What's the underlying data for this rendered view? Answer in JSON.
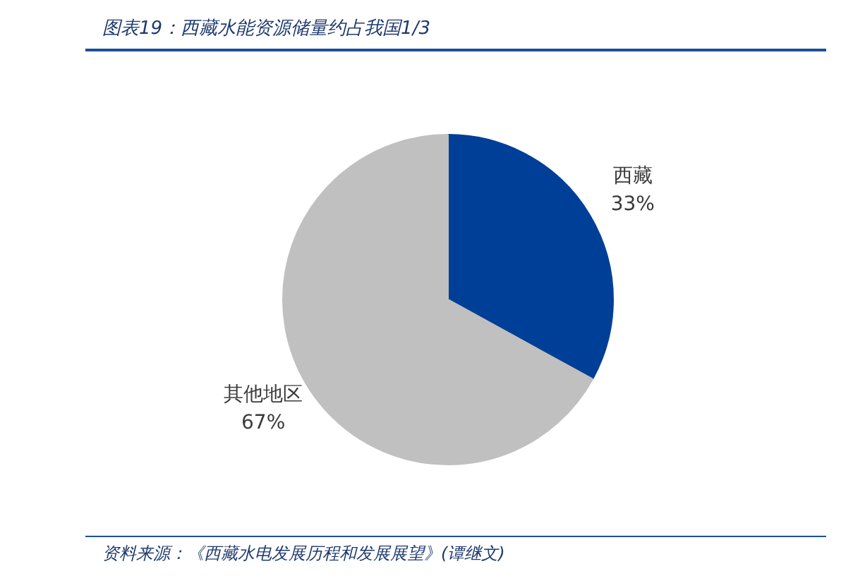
{
  "chart_data": {
    "type": "pie",
    "title": "图表19：西藏水能资源储量约占我国1/3",
    "categories": [
      "西藏",
      "其他地区"
    ],
    "values": [
      33,
      67
    ],
    "colors": [
      "#003f98",
      "#c0c0c0"
    ],
    "value_labels": [
      "33%",
      "67%"
    ],
    "annotations": [
      "资料来源：《西藏水电发展历程和发展展望》(谭继文)"
    ]
  }
}
